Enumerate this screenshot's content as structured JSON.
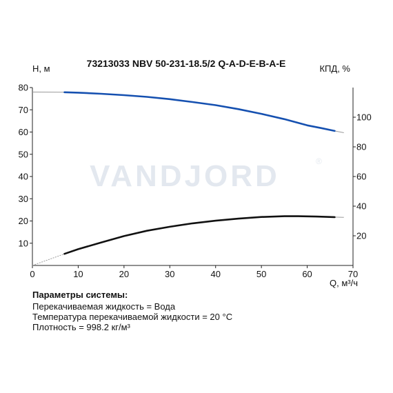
{
  "chart_data": {
    "type": "line",
    "title": "73213033 NBV 50-231-18.5/2 Q-A-D-E-B-A-E",
    "xlabel": "Q, м³/ч",
    "ylabel": "H, м",
    "y2label": "КПД, %",
    "watermark": "VANDJORD",
    "xlim": [
      0,
      70
    ],
    "ylim": [
      0,
      80
    ],
    "y2lim": [
      0,
      120
    ],
    "x_ticks": [
      0,
      10,
      20,
      30,
      40,
      50,
      60,
      70
    ],
    "y_ticks": [
      10,
      20,
      30,
      40,
      50,
      60,
      70,
      80
    ],
    "y2_ticks": [
      20,
      40,
      60,
      80,
      100
    ],
    "grid": false,
    "series": [
      {
        "axis": "left",
        "color": "#1550b0",
        "x": [
          7,
          10,
          15,
          20,
          25,
          30,
          35,
          40,
          45,
          50,
          55,
          60,
          63,
          66
        ],
        "y": [
          77.9,
          77.7,
          77.2,
          76.6,
          75.8,
          74.8,
          73.5,
          72.1,
          70.3,
          68.2,
          65.8,
          63.0,
          61.8,
          60.5
        ],
        "ext_before": [
          [
            0,
            78.0
          ],
          [
            7,
            77.9
          ]
        ],
        "ext_after": [
          [
            66,
            60.5
          ],
          [
            68,
            59.7
          ]
        ]
      },
      {
        "axis": "right",
        "color": "#111111",
        "x": [
          7,
          10,
          15,
          20,
          25,
          30,
          35,
          40,
          45,
          50,
          55,
          58,
          62,
          66
        ],
        "y": [
          7.8,
          11.0,
          15.5,
          19.8,
          23.4,
          26.1,
          28.4,
          30.2,
          31.6,
          32.7,
          33.2,
          33.2,
          33.0,
          32.6
        ],
        "ext_before": [
          [
            0,
            0
          ],
          [
            7,
            7.8
          ]
        ],
        "ext_after": [
          [
            66,
            32.6
          ],
          [
            68,
            32.4
          ]
        ]
      }
    ]
  },
  "params": {
    "heading": "Параметры системы:",
    "lines": [
      "Перекачиваемая жидкость = Вода",
      "Температура перекачиваемой жидкости = 20 °C",
      "Плотность = 998.2 кг/м³"
    ]
  }
}
